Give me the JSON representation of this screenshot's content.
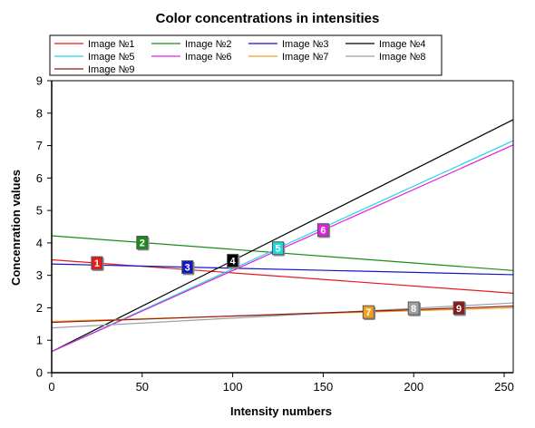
{
  "chart_data": {
    "type": "line",
    "title": "Color concentrations in intensities",
    "xlabel": "Intensity numbers",
    "ylabel": "Concenration values",
    "xlim": [
      0,
      255
    ],
    "ylim": [
      0,
      9
    ],
    "x_ticks": [
      0,
      50,
      100,
      150,
      200,
      250
    ],
    "y_ticks": [
      0,
      1,
      2,
      3,
      4,
      5,
      6,
      7,
      8,
      9
    ],
    "grid": false,
    "legend_position": "top",
    "series": [
      {
        "name": "Image №1",
        "color": "#e8191e",
        "marker_label": "1",
        "marker_x": 25,
        "x": [
          0,
          255
        ],
        "y": [
          3.48,
          2.45
        ]
      },
      {
        "name": "Image №2",
        "color": "#1a8c1a",
        "marker_label": "2",
        "marker_x": 50,
        "x": [
          0,
          255
        ],
        "y": [
          4.22,
          3.15
        ]
      },
      {
        "name": "Image №3",
        "color": "#1515c8",
        "marker_label": "3",
        "marker_x": 75,
        "x": [
          0,
          255
        ],
        "y": [
          3.35,
          3.02
        ]
      },
      {
        "name": "Image №4",
        "color": "#000000",
        "marker_label": "4",
        "marker_x": 100,
        "x": [
          0,
          255
        ],
        "y": [
          0.65,
          7.8
        ]
      },
      {
        "name": "Image №5",
        "color": "#20d8e0",
        "marker_label": "5",
        "marker_x": 125,
        "x": [
          0,
          255
        ],
        "y": [
          0.65,
          7.15
        ]
      },
      {
        "name": "Image №6",
        "color": "#e020e0",
        "marker_label": "6",
        "marker_x": 150,
        "x": [
          0,
          255
        ],
        "y": [
          0.65,
          7.02
        ]
      },
      {
        "name": "Image №7",
        "color": "#f0a020",
        "marker_label": "7",
        "marker_x": 175,
        "x": [
          0,
          255
        ],
        "y": [
          1.58,
          2.0
        ]
      },
      {
        "name": "Image №8",
        "color": "#a0a0a0",
        "marker_label": "8",
        "marker_x": 200,
        "x": [
          0,
          255
        ],
        "y": [
          1.38,
          2.15
        ]
      },
      {
        "name": "Image №9",
        "color": "#8b1a1a",
        "marker_label": "9",
        "marker_x": 225,
        "x": [
          0,
          255
        ],
        "y": [
          1.55,
          2.05
        ]
      }
    ]
  }
}
